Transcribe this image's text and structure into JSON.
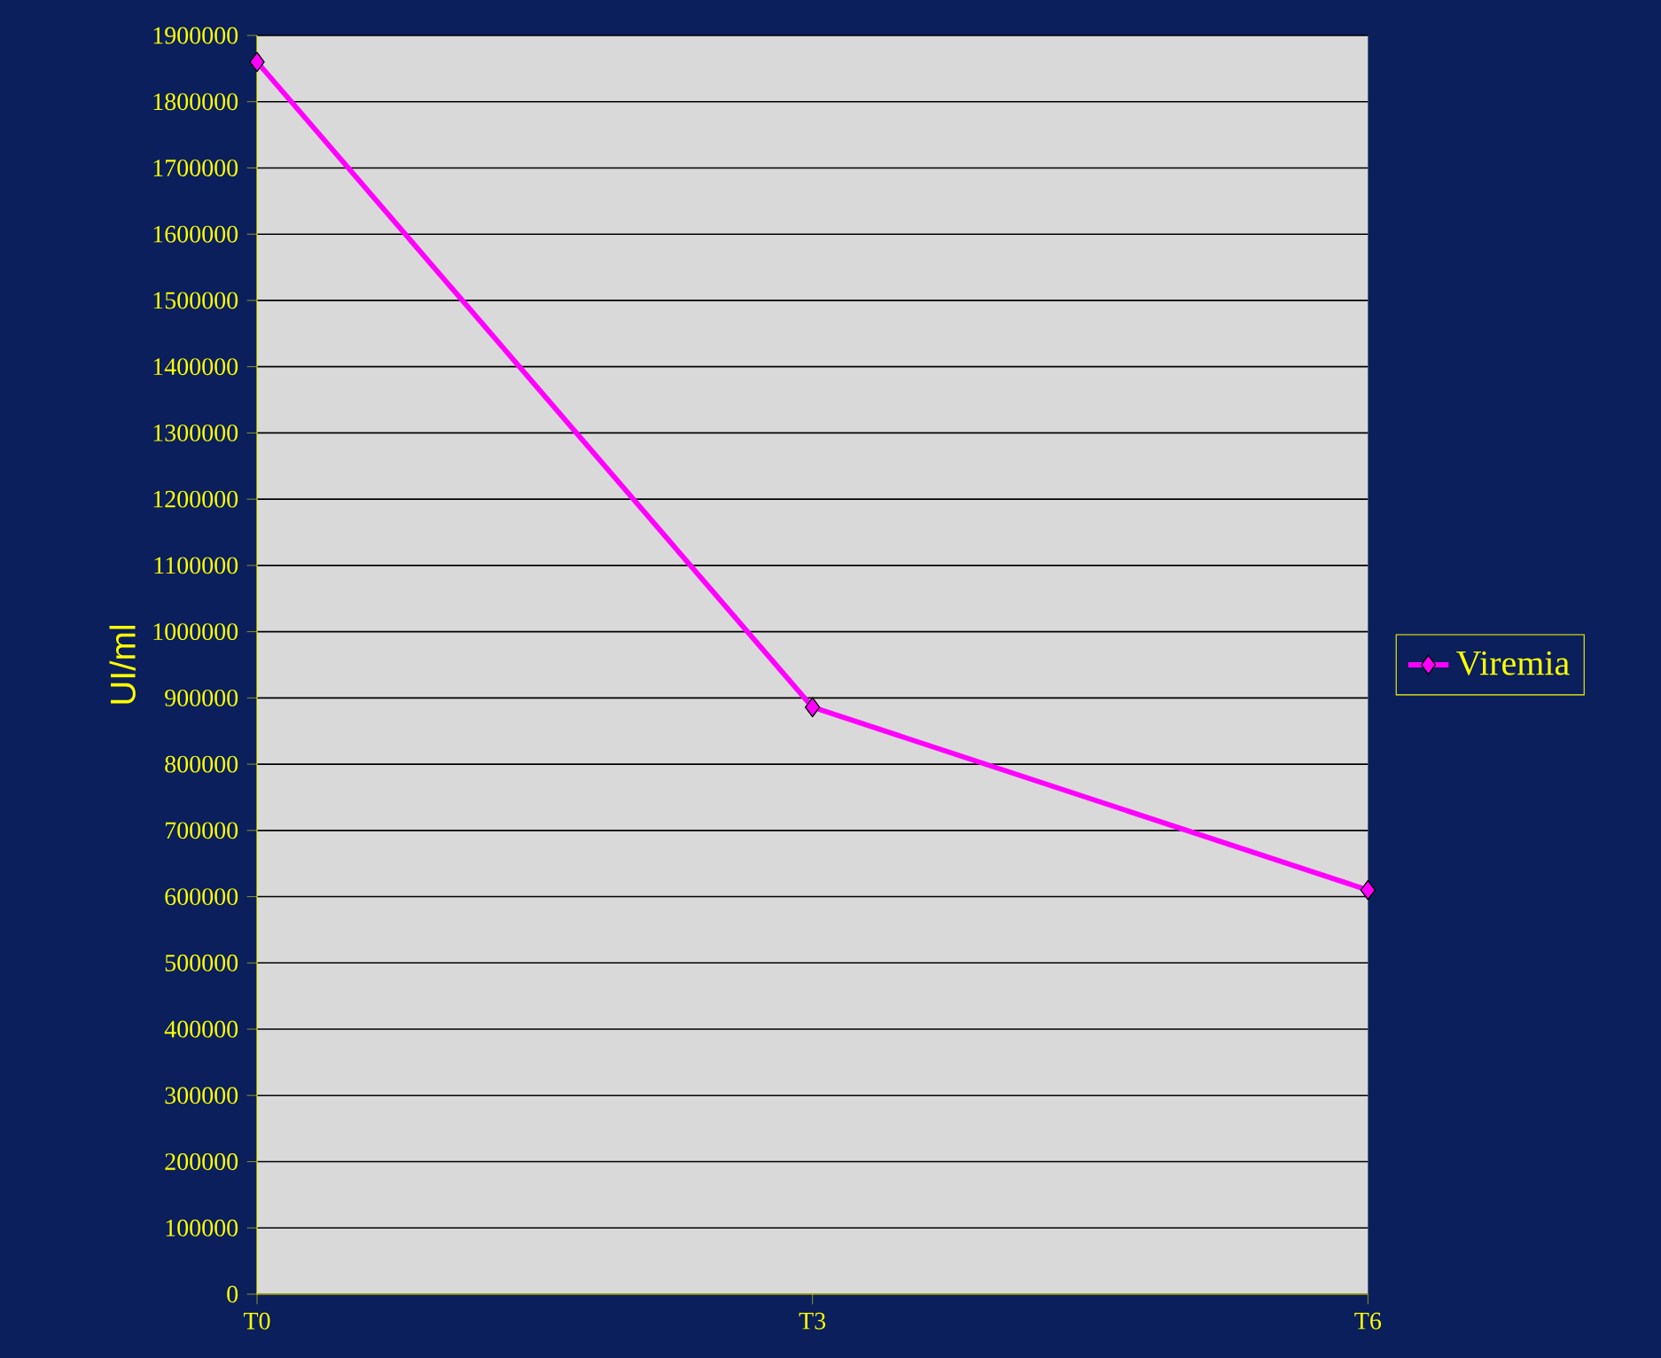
{
  "chart_data": {
    "type": "line",
    "ylabel": "UI/ml",
    "categories": [
      "T0",
      "T3",
      "T6"
    ],
    "series": [
      {
        "name": "Viremia",
        "color": "#ff00ff",
        "values": [
          1860000,
          886000,
          610000
        ]
      }
    ],
    "ylim": [
      0,
      1900000
    ],
    "yticks": [
      0,
      100000,
      200000,
      300000,
      400000,
      500000,
      600000,
      700000,
      800000,
      900000,
      1000000,
      1100000,
      1200000,
      1300000,
      1400000,
      1500000,
      1600000,
      1700000,
      1800000,
      1900000
    ],
    "grid": "y",
    "legend": "right",
    "marker": "diamond",
    "line_style": "solid"
  }
}
